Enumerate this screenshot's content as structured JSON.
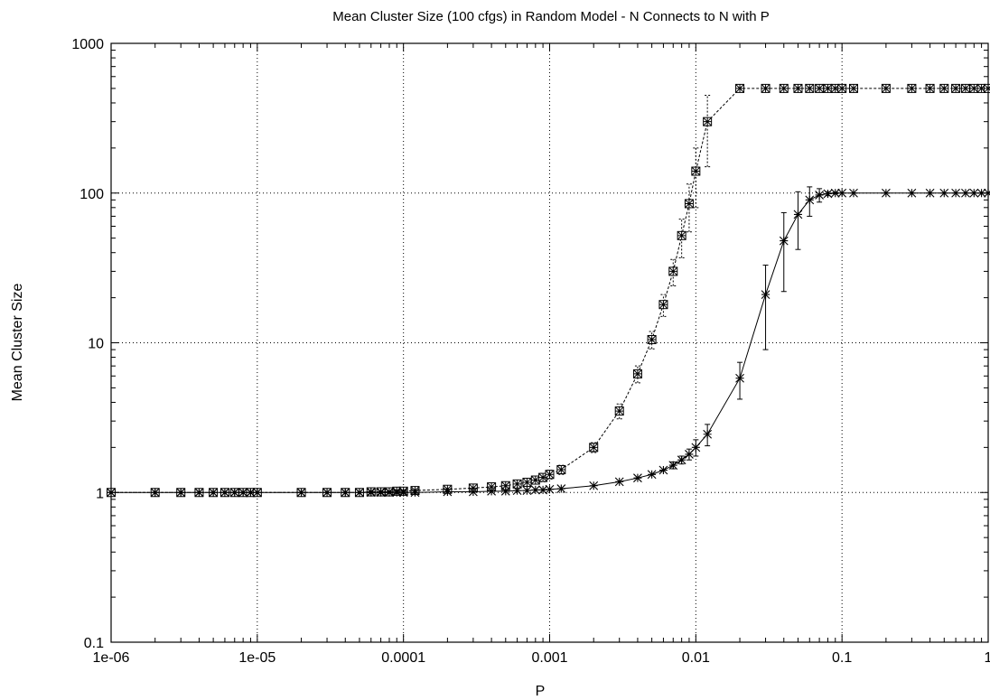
{
  "chart_data": {
    "type": "line",
    "title": "Mean Cluster Size (100 cfgs)  in Random Model - N Connects to N  with P",
    "xlabel": "P",
    "ylabel": "Mean Cluster Size",
    "xscale": "log",
    "yscale": "log",
    "xlim": [
      1e-06,
      1
    ],
    "ylim": [
      0.1,
      1000
    ],
    "grid": true,
    "x_ticks": [
      {
        "value": 1e-06,
        "label": "1e-06"
      },
      {
        "value": 1e-05,
        "label": "1e-05"
      },
      {
        "value": 0.0001,
        "label": "0.0001"
      },
      {
        "value": 0.001,
        "label": "0.001"
      },
      {
        "value": 0.01,
        "label": "0.01"
      },
      {
        "value": 0.1,
        "label": "0.1"
      },
      {
        "value": 1,
        "label": "1"
      }
    ],
    "y_ticks": [
      {
        "value": 0.1,
        "label": "0.1"
      },
      {
        "value": 1,
        "label": "1"
      },
      {
        "value": 10,
        "label": "10"
      },
      {
        "value": 100,
        "label": "100"
      },
      {
        "value": 1000,
        "label": "1000"
      }
    ],
    "series": [
      {
        "marker": "boxed-star",
        "line": "dashed",
        "x": [
          1e-06,
          2e-06,
          3e-06,
          4e-06,
          5e-06,
          6e-06,
          7e-06,
          8e-06,
          9e-06,
          1e-05,
          2e-05,
          3e-05,
          4e-05,
          5e-05,
          6e-05,
          7e-05,
          8e-05,
          9e-05,
          0.0001,
          0.00012,
          0.0002,
          0.0003,
          0.0004,
          0.0005,
          0.0006,
          0.0007,
          0.0008,
          0.0009,
          0.001,
          0.0012,
          0.002,
          0.003,
          0.004,
          0.005,
          0.006,
          0.007,
          0.008,
          0.009,
          0.01,
          0.012,
          0.02,
          0.03,
          0.04,
          0.05,
          0.06,
          0.07,
          0.08,
          0.09,
          0.1,
          0.12,
          0.2,
          0.3,
          0.4,
          0.5,
          0.6,
          0.7,
          0.8,
          0.9,
          1
        ],
        "y": [
          1,
          1,
          1,
          1,
          1,
          1,
          1,
          1,
          1,
          1,
          1,
          1,
          1,
          1,
          1.01,
          1.01,
          1.01,
          1.02,
          1.02,
          1.03,
          1.05,
          1.07,
          1.09,
          1.11,
          1.14,
          1.17,
          1.21,
          1.26,
          1.32,
          1.42,
          2,
          3.5,
          6.2,
          10.5,
          18,
          30,
          52,
          85,
          140,
          300,
          500,
          500,
          500,
          500,
          500,
          500,
          500,
          500,
          500,
          500,
          500,
          500,
          500,
          500,
          500,
          500,
          500,
          500,
          500
        ],
        "err": [
          0,
          0,
          0,
          0,
          0,
          0,
          0,
          0,
          0,
          0,
          0,
          0,
          0,
          0,
          0,
          0,
          0,
          0,
          0,
          0,
          0,
          0.02,
          0.03,
          0.04,
          0.05,
          0.06,
          0.07,
          0.08,
          0.09,
          0.1,
          0.15,
          0.4,
          0.8,
          1.4,
          3,
          6,
          15,
          30,
          60,
          150,
          0,
          0,
          0,
          0,
          0,
          0,
          0,
          0,
          0,
          0,
          0,
          0,
          0,
          0,
          0,
          0,
          0,
          0,
          0
        ]
      },
      {
        "marker": "star",
        "line": "solid",
        "x": [
          1e-06,
          2e-06,
          3e-06,
          4e-06,
          5e-06,
          6e-06,
          7e-06,
          8e-06,
          9e-06,
          1e-05,
          2e-05,
          3e-05,
          4e-05,
          5e-05,
          6e-05,
          7e-05,
          8e-05,
          9e-05,
          0.0001,
          0.00012,
          0.0002,
          0.0003,
          0.0004,
          0.0005,
          0.0006,
          0.0007,
          0.0008,
          0.0009,
          0.001,
          0.0012,
          0.002,
          0.003,
          0.004,
          0.005,
          0.006,
          0.007,
          0.008,
          0.009,
          0.01,
          0.012,
          0.02,
          0.03,
          0.04,
          0.05,
          0.06,
          0.07,
          0.08,
          0.09,
          0.1,
          0.12,
          0.2,
          0.3,
          0.4,
          0.5,
          0.6,
          0.7,
          0.8,
          0.9,
          1
        ],
        "y": [
          1,
          1,
          1,
          1,
          1,
          1,
          1,
          1,
          1,
          1,
          1,
          1,
          1,
          1,
          1,
          1,
          1,
          1,
          1,
          1,
          1.01,
          1.01,
          1.02,
          1.02,
          1.03,
          1.03,
          1.04,
          1.04,
          1.05,
          1.06,
          1.11,
          1.18,
          1.25,
          1.32,
          1.41,
          1.52,
          1.65,
          1.8,
          2,
          2.45,
          5.8,
          21,
          48,
          72,
          90,
          97,
          99,
          100,
          100,
          100,
          100,
          100,
          100,
          100,
          100,
          100,
          100,
          100,
          100
        ],
        "err": [
          0,
          0,
          0,
          0,
          0,
          0,
          0,
          0,
          0,
          0,
          0,
          0,
          0,
          0,
          0,
          0,
          0,
          0,
          0,
          0,
          0,
          0,
          0,
          0,
          0,
          0,
          0,
          0,
          0,
          0,
          0,
          0,
          0,
          0,
          0,
          0.08,
          0.1,
          0.15,
          0.25,
          0.4,
          1.6,
          12,
          26,
          30,
          20,
          10,
          3,
          1,
          0,
          0,
          0,
          0,
          0,
          0,
          0,
          0,
          0,
          0,
          0
        ]
      }
    ]
  }
}
